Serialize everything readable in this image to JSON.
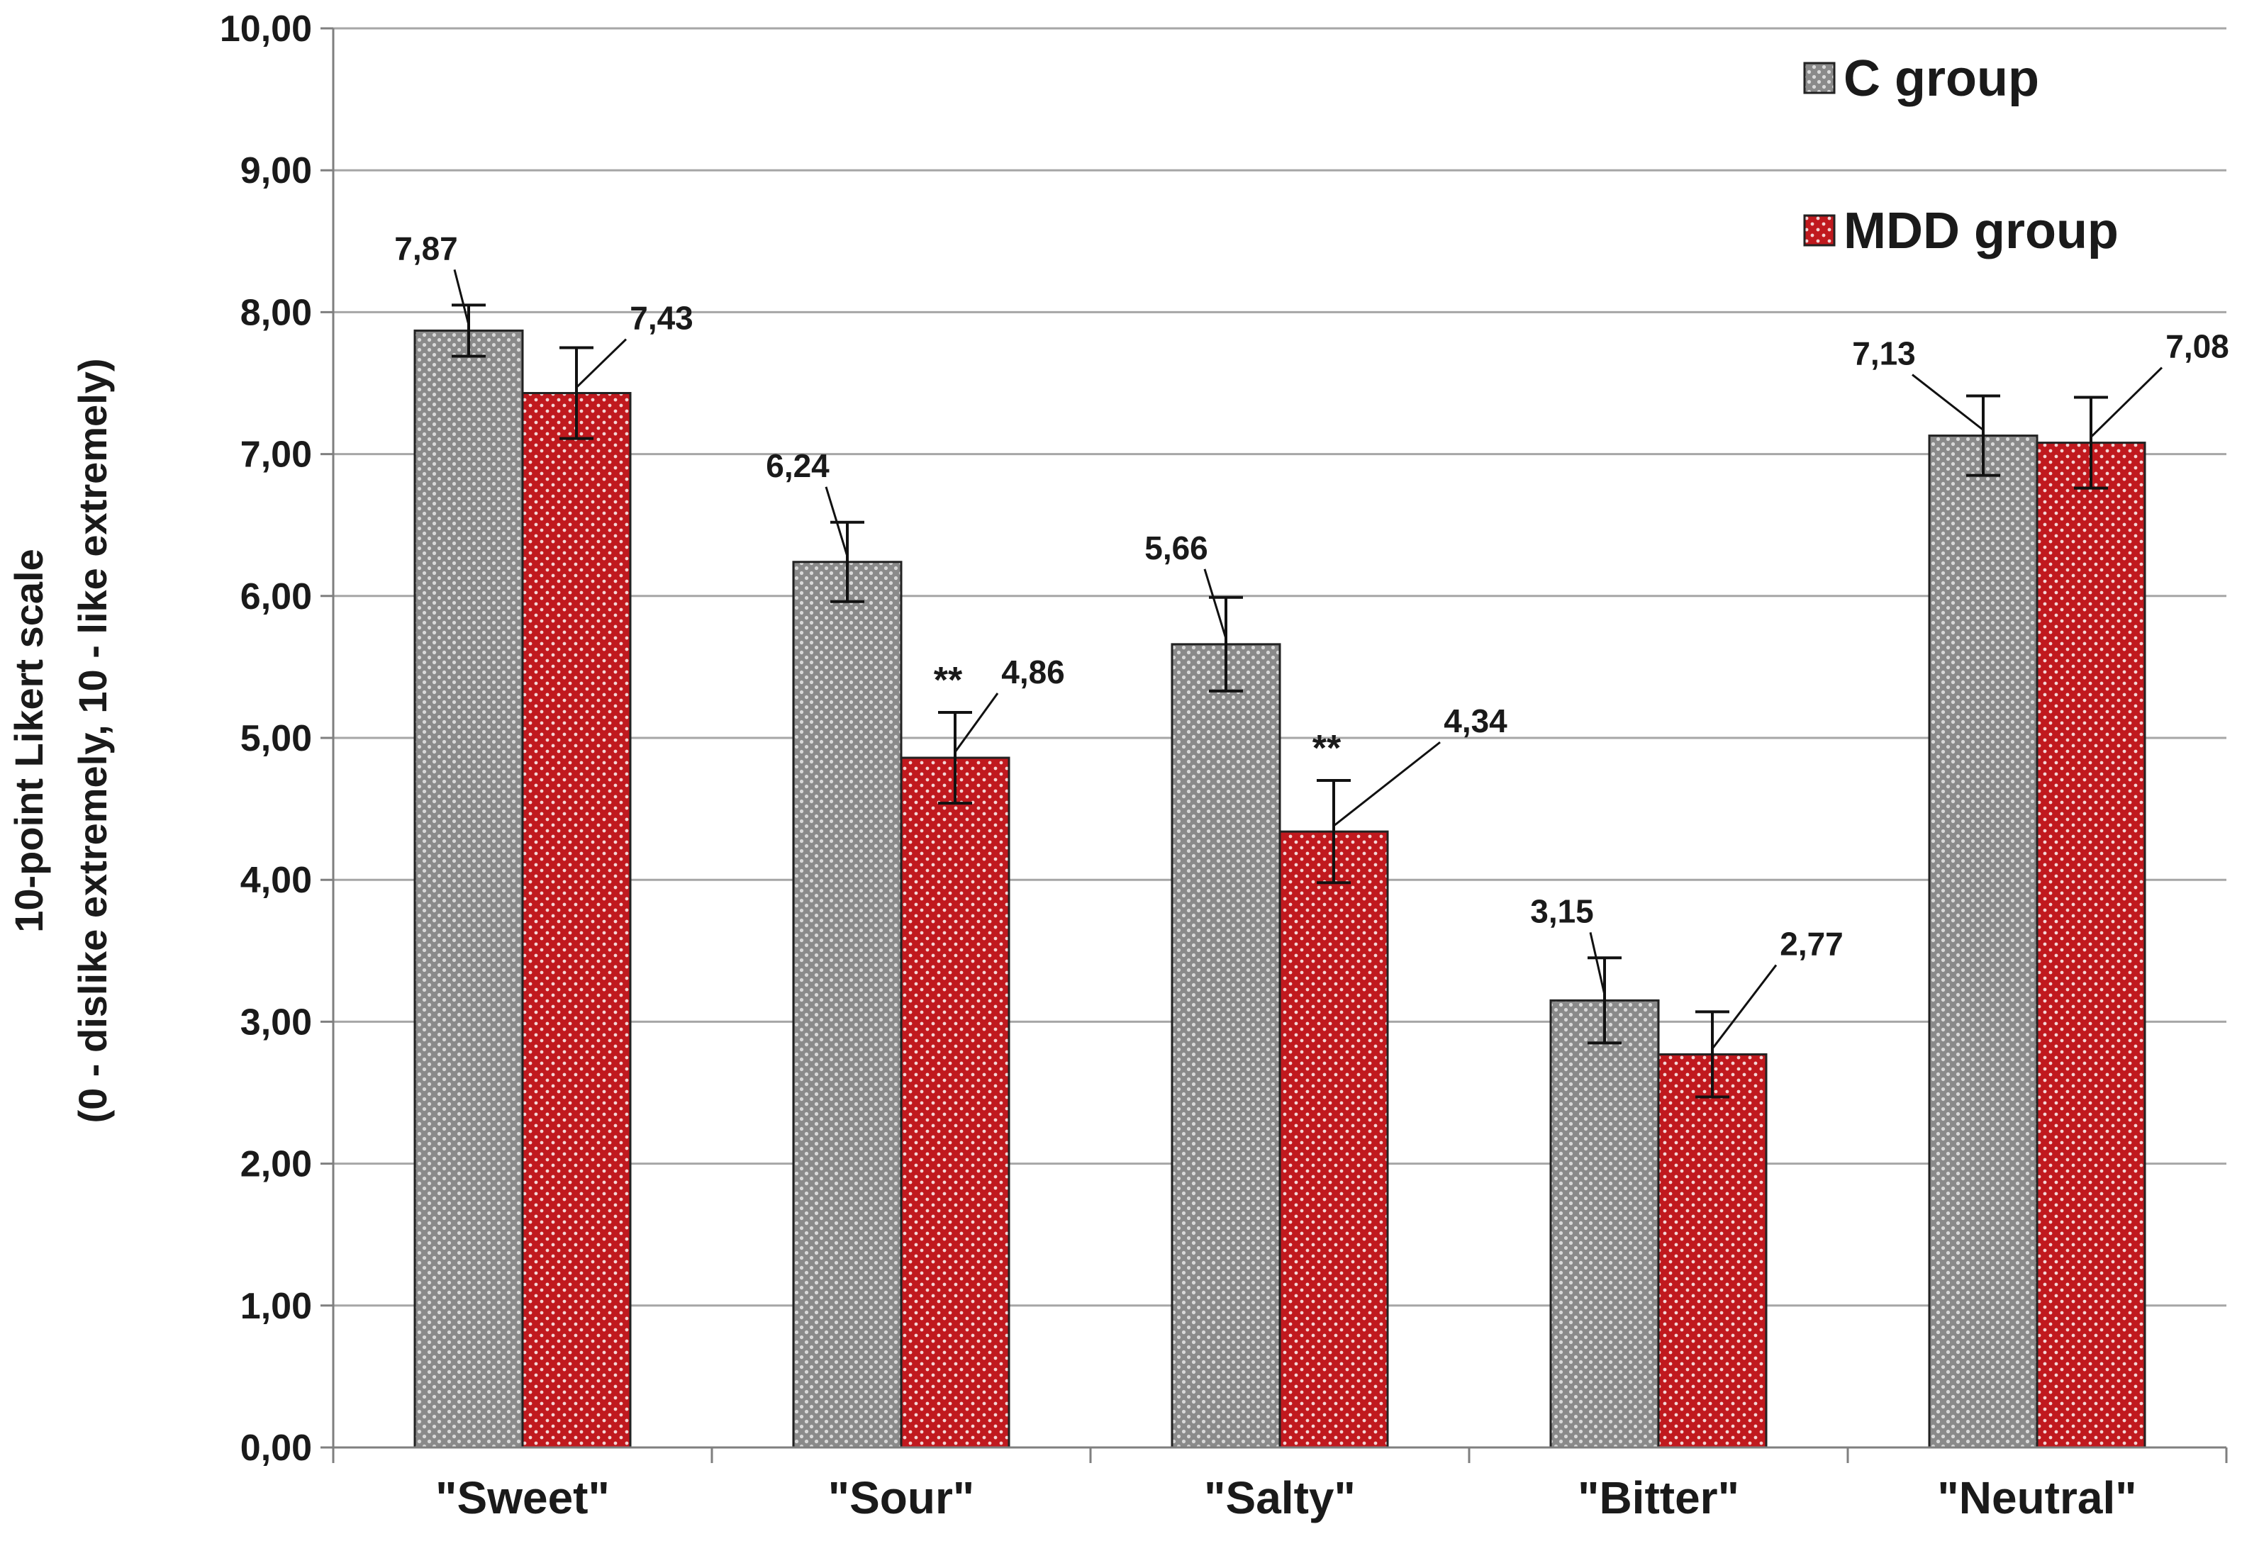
{
  "chart_data": {
    "type": "bar",
    "categories": [
      "\"Sweet\"",
      "\"Sour\"",
      "\"Salty\"",
      "\"Bitter\"",
      "\"Neutral\""
    ],
    "series": [
      {
        "name": "C group",
        "color": "#8c8c8c",
        "values": [
          7.87,
          6.24,
          5.66,
          3.15,
          7.13
        ],
        "errors": [
          0.18,
          0.28,
          0.33,
          0.3,
          0.28
        ],
        "labels": [
          "7,87",
          "6,24",
          "5,66",
          "3,15",
          "7,13"
        ]
      },
      {
        "name": "MDD group",
        "color": "#c0191e",
        "values": [
          7.43,
          4.86,
          4.34,
          2.77,
          7.08
        ],
        "errors": [
          0.32,
          0.32,
          0.36,
          0.3,
          0.32
        ],
        "labels": [
          "7,43",
          "4,86",
          "4,34",
          "2,77",
          "7,08"
        ]
      }
    ],
    "significance": [
      {
        "category_index": 1,
        "series_index": 1,
        "mark": "**"
      },
      {
        "category_index": 2,
        "series_index": 1,
        "mark": "**"
      }
    ],
    "ylim": [
      0,
      10
    ],
    "yticks": [
      "0,00",
      "1,00",
      "2,00",
      "3,00",
      "4,00",
      "5,00",
      "6,00",
      "7,00",
      "8,00",
      "9,00",
      "10,00"
    ],
    "ylabel_line1": "10-point Likert scale",
    "ylabel_line2": "(0 - dislike extremely, 10 - like extremely)",
    "xlabel": "",
    "title": "",
    "grid": true,
    "legend_position": "top-right"
  }
}
